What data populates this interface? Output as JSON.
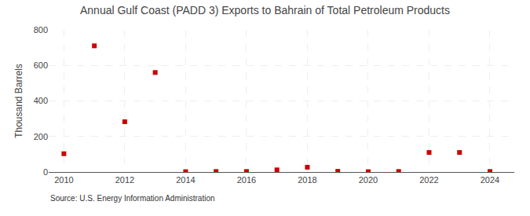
{
  "chart_data": {
    "type": "scatter",
    "title": "Annual Gulf Coast (PADD 3) Exports to Bahrain of Total Petroleum Products",
    "y_label": "Thousand Barrels",
    "annotations": [
      "Source: U.S. Energy Information Administration"
    ],
    "x": [
      2010,
      2011,
      2012,
      2013,
      2014,
      2015,
      2016,
      2017,
      2018,
      2019,
      2020,
      2021,
      2022,
      2023,
      2024
    ],
    "values": [
      103,
      710,
      283,
      560,
      2,
      3,
      3,
      12,
      27,
      4,
      2,
      3,
      110,
      110,
      3
    ],
    "color": "#cc0000",
    "marker": "square",
    "xlim": [
      2009.5,
      2024.8
    ],
    "ylim": [
      0,
      800
    ],
    "xticks": [
      2010,
      2012,
      2014,
      2016,
      2018,
      2020,
      2022,
      2024
    ],
    "yticks": [
      0,
      200,
      400,
      600,
      800
    ],
    "grid": true
  }
}
